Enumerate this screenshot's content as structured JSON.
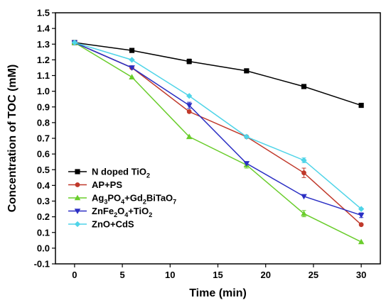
{
  "chart_data": {
    "type": "line",
    "title": "",
    "xlabel": "Time (min)",
    "ylabel": "Concentration of TOC (mM)",
    "xlim": [
      -2,
      32
    ],
    "ylim": [
      -0.1,
      1.5
    ],
    "xticks": [
      0,
      5,
      10,
      15,
      20,
      25,
      30
    ],
    "yticks": [
      -0.1,
      0.0,
      0.1,
      0.2,
      0.3,
      0.4,
      0.5,
      0.6,
      0.7,
      0.8,
      0.9,
      1.0,
      1.1,
      1.2,
      1.3,
      1.4,
      1.5
    ],
    "ytick_labels": [
      "-0.1",
      "0.0",
      "0.1",
      "0.2",
      "0.3",
      "0.4",
      "0.5",
      "0.6",
      "0.7",
      "0.8",
      "0.9",
      "1.0",
      "1.1",
      "1.2",
      "1.3",
      "1.4",
      "1.5"
    ],
    "xtick_labels": [
      "0",
      "5",
      "10",
      "15",
      "20",
      "25",
      "30"
    ],
    "legend_position": "lower-left",
    "grid": false,
    "x": [
      0,
      6,
      12,
      18,
      24,
      30
    ],
    "series": [
      {
        "name": "N doped TiO",
        "sub": "2",
        "tail": "",
        "color": "#000000",
        "marker": "square",
        "values": [
          1.31,
          1.26,
          1.19,
          1.13,
          1.03,
          0.91
        ],
        "errors": [
          0,
          0,
          0.015,
          0,
          0,
          0
        ]
      },
      {
        "name": "AP+PS",
        "sub": "",
        "tail": "",
        "color": "#c0392b",
        "marker": "circle",
        "values": [
          1.31,
          1.15,
          0.87,
          0.71,
          0.48,
          0.15
        ],
        "errors": [
          0,
          0,
          0,
          0,
          0.03,
          0
        ]
      },
      {
        "name": "Ag",
        "sub": "3",
        "tail": "PO",
        "sub2": "4",
        "tail2": "+Gd",
        "sub3": "2",
        "tail3": "BiTaO",
        "sub4": "7",
        "color": "#6acd2c",
        "marker": "triangle-up",
        "values": [
          1.31,
          1.09,
          0.71,
          0.53,
          0.22,
          0.04
        ],
        "errors": [
          0,
          0,
          0,
          0.02,
          0.02,
          0
        ]
      },
      {
        "name": "ZnFe",
        "sub": "2",
        "tail": "O",
        "sub2": "4",
        "tail2": "+TiO",
        "sub3": "2",
        "color": "#2b2fc4",
        "marker": "triangle-down",
        "values": [
          1.31,
          1.15,
          0.91,
          0.54,
          0.33,
          0.21
        ],
        "errors": [
          0,
          0,
          0.02,
          0,
          0,
          0.015
        ]
      },
      {
        "name": "ZnO+CdS",
        "sub": "",
        "tail": "",
        "color": "#4fd4e8",
        "marker": "diamond",
        "values": [
          1.31,
          1.2,
          0.97,
          0.71,
          0.56,
          0.25
        ],
        "errors": [
          0,
          0,
          0,
          0,
          0.015,
          0
        ]
      }
    ]
  }
}
